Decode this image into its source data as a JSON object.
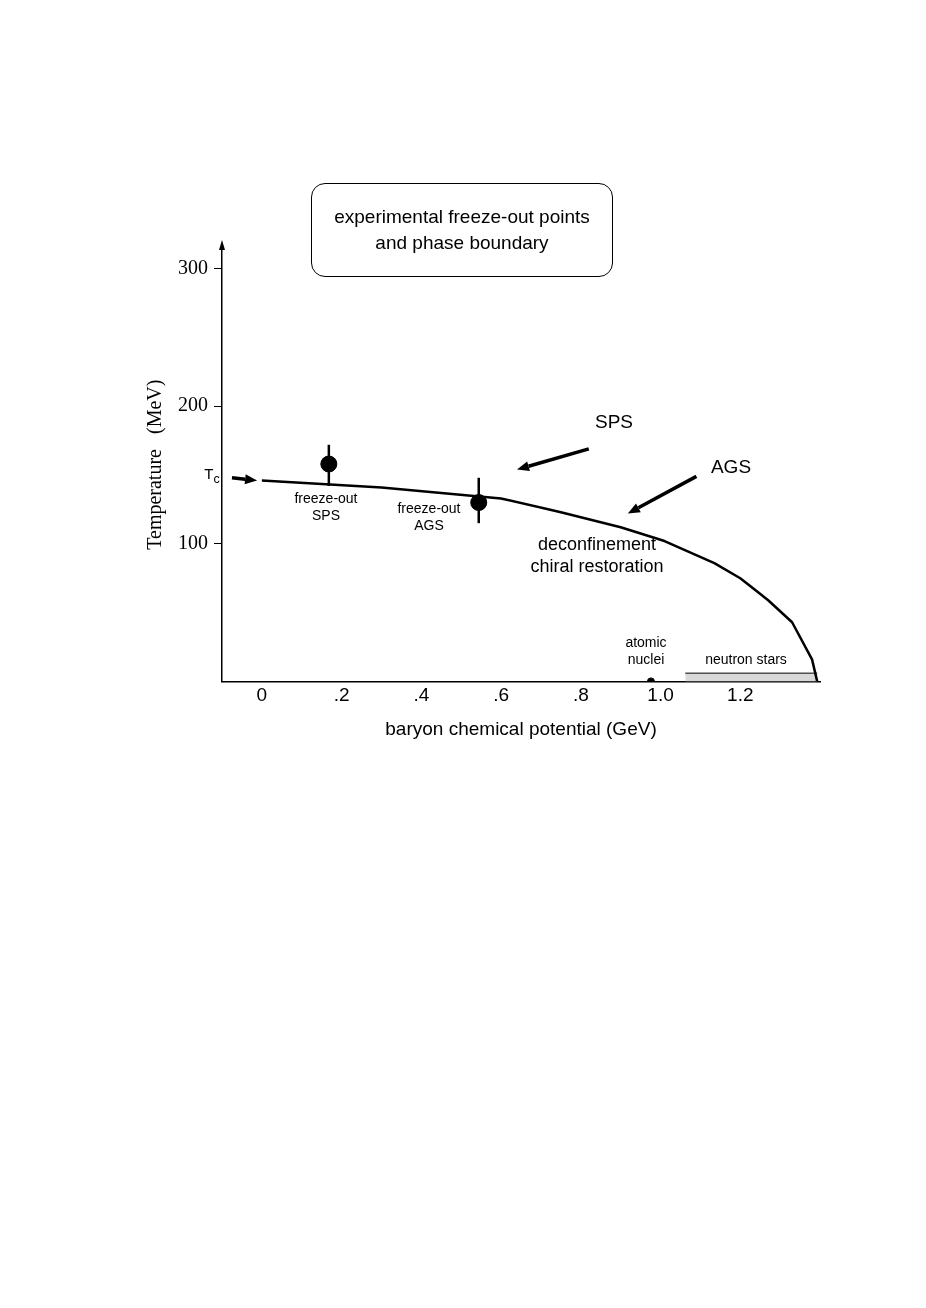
{
  "chart_data": {
    "type": "line",
    "title": "experimental freeze-out points\nand phase boundary",
    "xlabel": "baryon chemical potential (GeV)",
    "ylabel": "Temperature   (MeV)",
    "xlim": [
      -0.1,
      1.4
    ],
    "xticks": [
      0,
      {
        "value": 0.2,
        "label": ".2"
      },
      {
        "value": 0.4,
        "label": ".4"
      },
      {
        "value": 0.6,
        "label": ".6"
      },
      {
        "value": 0.8,
        "label": ".8"
      },
      {
        "value": 1.0,
        "label": "1.0"
      },
      {
        "value": 1.2,
        "label": "1.2"
      }
    ],
    "ylim": [
      0,
      315
    ],
    "yticks": [
      100,
      200,
      300
    ],
    "grid": false,
    "legend": false,
    "series": [
      {
        "type": "line",
        "color": "#000000",
        "marker": "none",
        "line_style": "solid",
        "x": [
          0,
          0.3,
          0.6,
          0.75,
          0.9,
          1.01,
          1.135,
          1.2,
          1.27,
          1.33,
          1.38,
          1.393
        ],
        "values": [
          146,
          141,
          133,
          123,
          112,
          102,
          86,
          75,
          59,
          43,
          16,
          0
        ]
      },
      {
        "type": "scatter",
        "color": "#000000",
        "marker": "circle",
        "x": [
          0.168,
          0.544
        ],
        "values": [
          158,
          130
        ],
        "errors": [
          [
            142,
            172
          ],
          [
            115,
            148
          ]
        ]
      },
      {
        "type": "scatter",
        "color": "#000000",
        "marker": "circle",
        "x": [
          0.976
        ],
        "values": [
          0
        ]
      },
      {
        "type": "area",
        "color": "#d9d9d9",
        "x": [
          1.062,
          1.393
        ],
        "values": [
          6,
          6
        ]
      }
    ],
    "annotations": [
      "T$_{c}$",
      "freeze-out\nSPS",
      "freeze-out\nAGS",
      "SPS",
      "AGS",
      "deconfinement\nchiral restoration",
      "atomic\nnuclei",
      "neutron stars"
    ]
  }
}
